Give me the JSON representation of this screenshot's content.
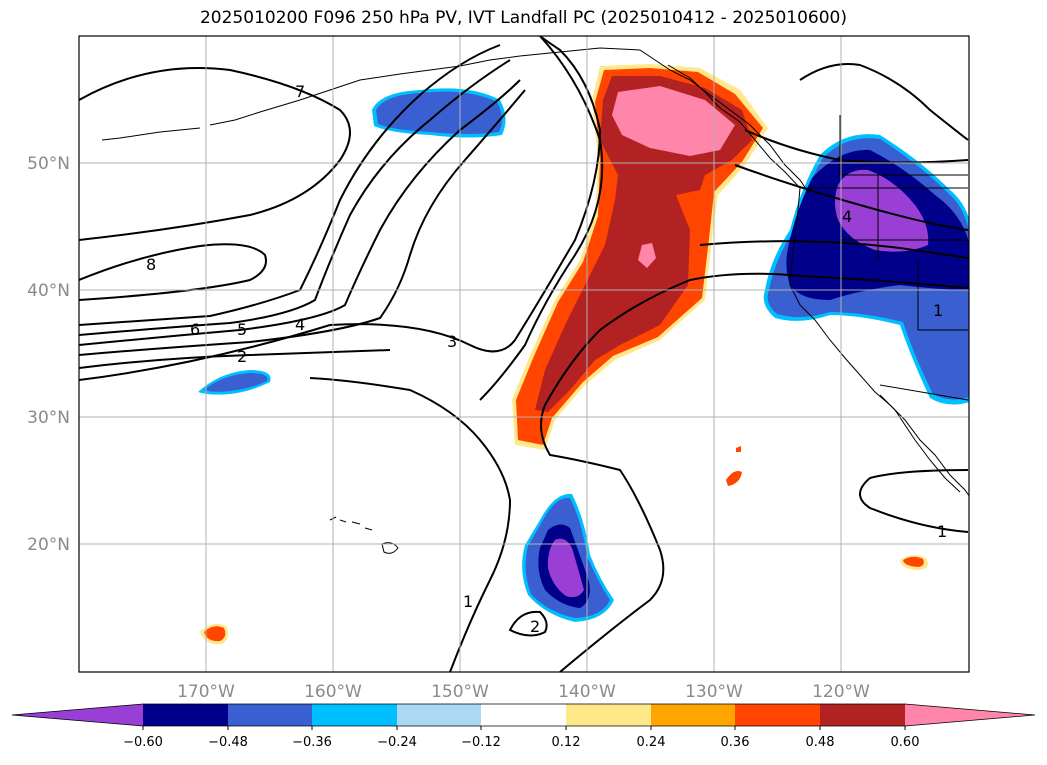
{
  "title": "2025010200 F096 250 hPa PV, IVT Landfall PC (2025010412 - 2025010600)",
  "lat_labels": [
    {
      "text": "50°N",
      "lat": 50
    },
    {
      "text": "40°N",
      "lat": 40
    },
    {
      "text": "30°N",
      "lat": 30
    },
    {
      "text": "20°N",
      "lat": 20
    }
  ],
  "lon_labels": [
    {
      "text": "170°W",
      "lon": -170
    },
    {
      "text": "160°W",
      "lon": -160
    },
    {
      "text": "150°W",
      "lon": -150
    },
    {
      "text": "140°W",
      "lon": -140
    },
    {
      "text": "130°W",
      "lon": -130
    },
    {
      "text": "120°W",
      "lon": -120
    }
  ],
  "contour_labels": [
    "7",
    "8",
    "6",
    "5",
    "4",
    "2",
    "3",
    "4",
    "1",
    "1",
    "1",
    "2"
  ],
  "colorbar": {
    "ticks": [
      "−0.60",
      "−0.48",
      "−0.36",
      "−0.24",
      "−0.12",
      "0.12",
      "0.24",
      "0.36",
      "0.48",
      "0.60"
    ],
    "colors": [
      "#9a3fd6",
      "#00008b",
      "#3a5fd0",
      "#00bfff",
      "#add8f5",
      "#ffffff",
      "#ffe88a",
      "#ffa500",
      "#ff4500",
      "#b22222",
      "#ff85aa",
      "#ff85aa"
    ],
    "extend": "both"
  }
}
